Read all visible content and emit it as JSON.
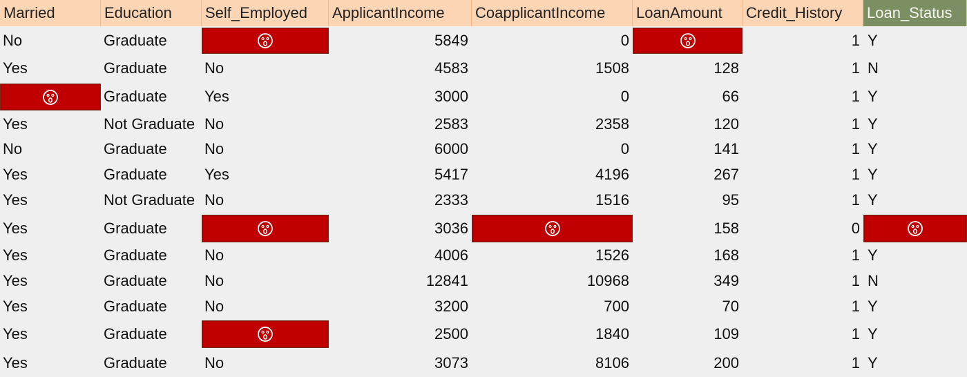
{
  "headers": [
    "Married",
    "Education",
    "Self_Employed",
    "ApplicantIncome",
    "CoapplicantIncome",
    "LoanAmount",
    "Credit_History",
    "Loan_Status"
  ],
  "missing_marker": {
    "icon": "surprised-face-icon",
    "fill_color": "#c00000"
  },
  "rows": [
    [
      "No",
      "Graduate",
      null,
      "5849",
      "0",
      null,
      "1",
      "Y"
    ],
    [
      "Yes",
      "Graduate",
      "No",
      "4583",
      "1508",
      "128",
      "1",
      "N"
    ],
    [
      null,
      "Graduate",
      "Yes",
      "3000",
      "0",
      "66",
      "1",
      "Y"
    ],
    [
      "Yes",
      "Not Graduate",
      "No",
      "2583",
      "2358",
      "120",
      "1",
      "Y"
    ],
    [
      "No",
      "Graduate",
      "No",
      "6000",
      "0",
      "141",
      "1",
      "Y"
    ],
    [
      "Yes",
      "Graduate",
      "Yes",
      "5417",
      "4196",
      "267",
      "1",
      "Y"
    ],
    [
      "Yes",
      "Not Graduate",
      "No",
      "2333",
      "1516",
      "95",
      "1",
      "Y"
    ],
    [
      "Yes",
      "Graduate",
      null,
      "3036",
      null,
      "158",
      "0",
      null
    ],
    [
      "Yes",
      "Graduate",
      "No",
      "4006",
      "1526",
      "168",
      "1",
      "Y"
    ],
    [
      "Yes",
      "Graduate",
      "No",
      "12841",
      "10968",
      "349",
      "1",
      "N"
    ],
    [
      "Yes",
      "Graduate",
      "No",
      "3200",
      "700",
      "70",
      "1",
      "Y"
    ],
    [
      "Yes",
      "Graduate",
      null,
      "2500",
      "1840",
      "109",
      "1",
      "Y"
    ],
    [
      "Yes",
      "Graduate",
      "No",
      "3073",
      "8106",
      "200",
      "1",
      "Y"
    ]
  ]
}
